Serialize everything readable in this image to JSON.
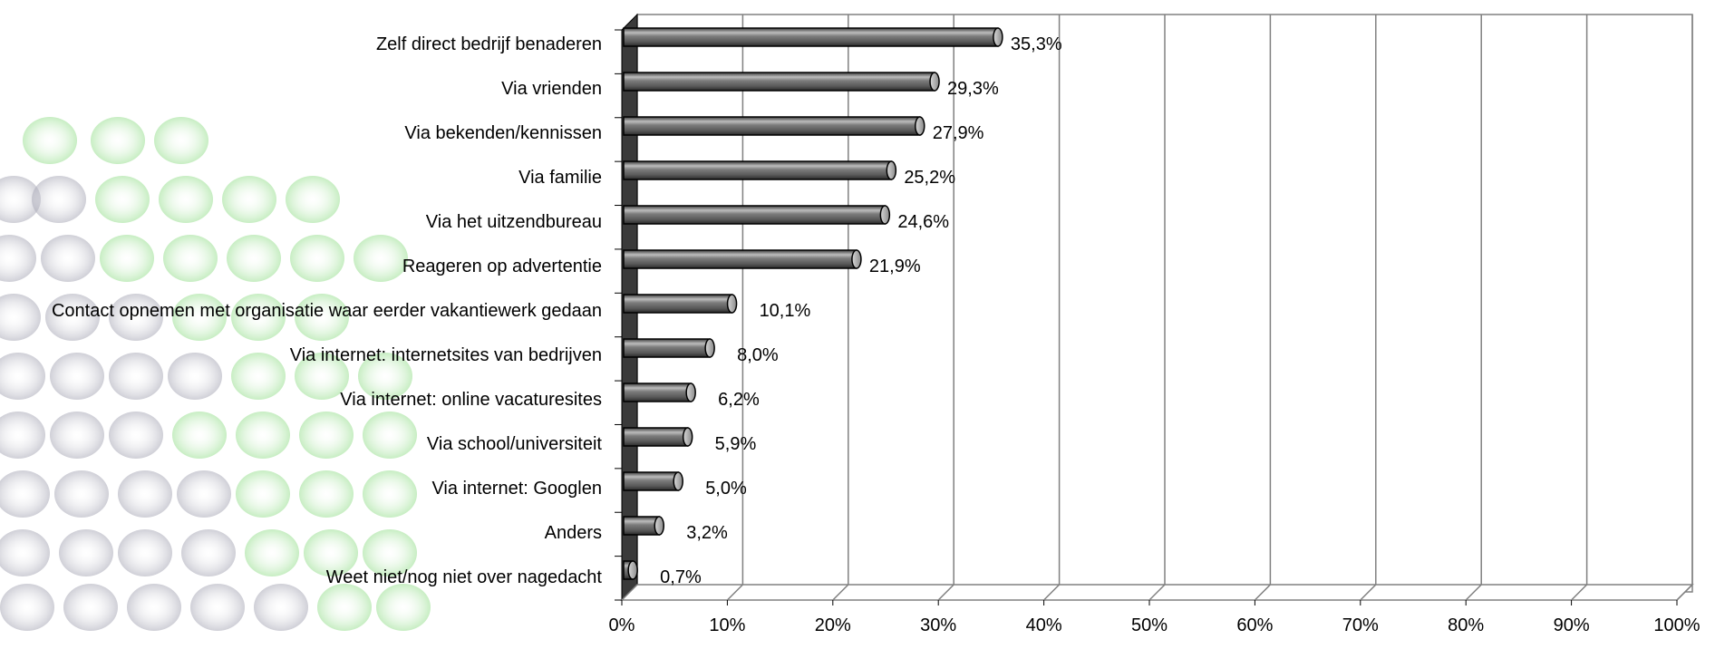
{
  "chart_data": {
    "type": "bar",
    "orientation": "horizontal",
    "style": "3d-cylinder",
    "categories": [
      "Zelf direct bedrijf benaderen",
      "Via vrienden",
      "Via bekenden/kennissen",
      "Via familie",
      "Via het uitzendbureau",
      "Reageren op advertentie",
      "Contact opnemen met organisatie waar eerder vakantiewerk gedaan",
      "Via internet: internetsites van bedrijven",
      "Via internet: online vacaturesites",
      "Via school/universiteit",
      "Via internet: Googlen",
      "Anders",
      "Weet niet/nog niet over nagedacht"
    ],
    "values": [
      35.3,
      29.3,
      27.9,
      25.2,
      24.6,
      21.9,
      10.1,
      8.0,
      6.2,
      5.9,
      5.0,
      3.2,
      0.7
    ],
    "value_labels": [
      "35,3%",
      "29,3%",
      "27,9%",
      "25,2%",
      "24,6%",
      "21,9%",
      "10,1%",
      "8,0%",
      "6,2%",
      "5,9%",
      "5,0%",
      "3,2%",
      "0,7%"
    ],
    "x_ticks": [
      "0%",
      "10%",
      "20%",
      "30%",
      "40%",
      "50%",
      "60%",
      "70%",
      "80%",
      "90%",
      "100%"
    ],
    "xlim": [
      0,
      100
    ],
    "grid": true,
    "legend": "none",
    "colors": {
      "bar": "#6e6e6e",
      "bar_highlight": "#b9b9b9",
      "bar_outline": "#000000",
      "wall": "#3a3a3a",
      "grid": "#808080",
      "text": "#000000",
      "background_dots_gray": "#b8b8c4",
      "background_dots_green": "#b6e8b0"
    }
  }
}
